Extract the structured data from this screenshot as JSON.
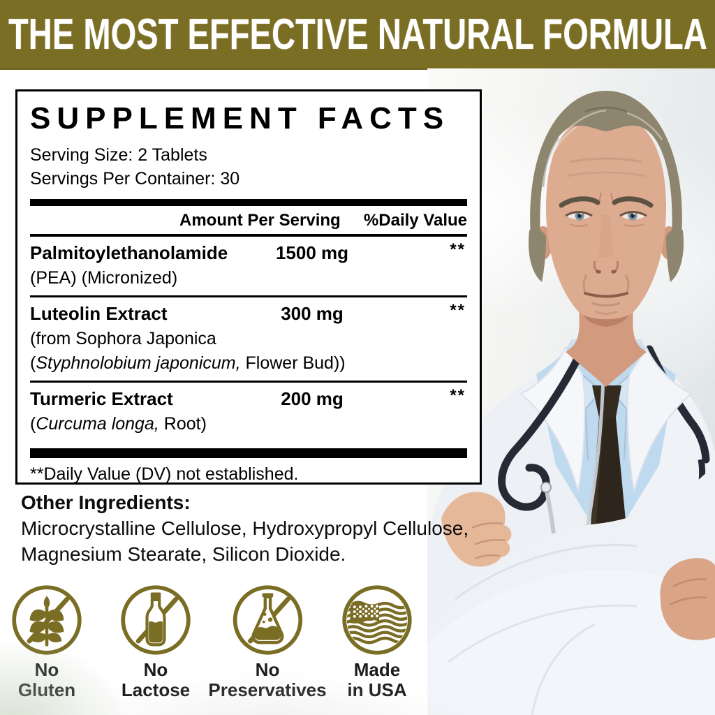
{
  "banner": {
    "text": "THE MOST EFFECTIVE NATURAL FORMULA"
  },
  "supplement_facts": {
    "title": "SUPPLEMENT FACTS",
    "serving_size": "Serving Size: 2 Tablets",
    "servings_per_container": "Servings Per Container: 30",
    "columns": {
      "amount": "Amount Per Serving",
      "daily_value": "%Daily Value"
    },
    "rows": [
      {
        "name": "Palmitoylethanolamide",
        "amount": "1500 mg",
        "daily_value": "**",
        "sub_lines": [
          [
            {
              "t": "(PEA) (Micronized)",
              "i": 0
            }
          ]
        ]
      },
      {
        "name": "Luteolin Extract",
        "amount": "300 mg",
        "daily_value": "**",
        "sub_lines": [
          [
            {
              "t": "(from Sophora Japonica",
              "i": 0
            }
          ],
          [
            {
              "t": "(",
              "i": 0
            },
            {
              "t": "Styphnolobium japonicum,",
              "i": 1
            },
            {
              "t": " Flower Bud))",
              "i": 0
            }
          ]
        ]
      },
      {
        "name": "Turmeric Extract",
        "amount": "200 mg",
        "daily_value": "**",
        "sub_lines": [
          [
            {
              "t": "(",
              "i": 0
            },
            {
              "t": "Curcuma longa,",
              "i": 1
            },
            {
              "t": " Root)",
              "i": 0
            }
          ]
        ]
      }
    ],
    "footnote": "**Daily Value (DV) not established."
  },
  "other_ingredients": {
    "label": "Other Ingredients:",
    "lines": [
      "Microcrystalline Cellulose, Hydroxypropyl Cellulose,",
      "Magnesium Stearate, Silicon Dioxide."
    ]
  },
  "badges": [
    {
      "icon": "no-gluten-icon",
      "lines": [
        "No",
        "Gluten"
      ]
    },
    {
      "icon": "no-lactose-icon",
      "lines": [
        "No",
        "Lactose"
      ]
    },
    {
      "icon": "no-preservatives-icon",
      "lines": [
        "No",
        "Preservatives"
      ]
    },
    {
      "icon": "made-in-usa-icon",
      "lines": [
        "Made",
        "in USA"
      ]
    }
  ],
  "colors": {
    "accent_olive": "#7a6d24",
    "banner_text": "#ffffff",
    "label_text": "#1c1c1c"
  }
}
